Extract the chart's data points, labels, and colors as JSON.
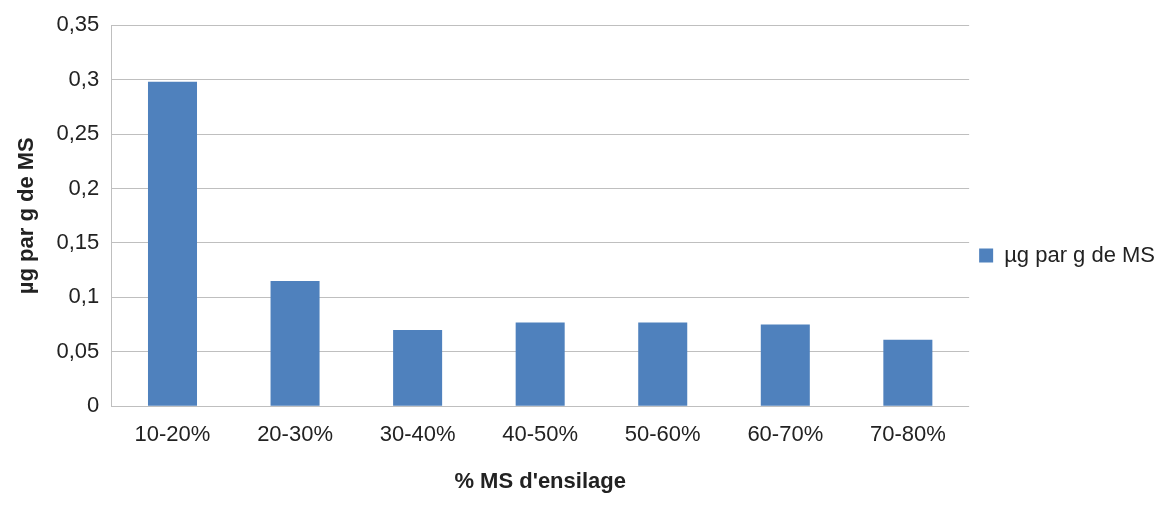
{
  "chart_data": {
    "type": "bar",
    "xlabel": "% MS d'ensilage",
    "ylabel": "µg par g de MS",
    "categories": [
      "10-20%",
      "20-30%",
      "30-40%",
      "40-50%",
      "50-60%",
      "60-70%",
      "70-80%"
    ],
    "series": [
      {
        "name": "µg par g de MS",
        "color": "#4f81bd",
        "values": [
          0.298,
          0.115,
          0.07,
          0.077,
          0.077,
          0.075,
          0.061
        ]
      }
    ],
    "ylim": [
      0,
      0.35
    ],
    "yticks": [
      0,
      {
        "value": 0.05,
        "label": "0,05"
      },
      {
        "value": 0.1,
        "label": "0,1"
      },
      {
        "value": 0.15,
        "label": "0,15"
      },
      {
        "value": 0.2,
        "label": "0,2"
      },
      {
        "value": 0.25,
        "label": "0,25"
      },
      {
        "value": 0.3,
        "label": "0,3"
      },
      {
        "value": 0.35,
        "label": "0,35"
      }
    ],
    "grid": "y",
    "legend": "right"
  }
}
